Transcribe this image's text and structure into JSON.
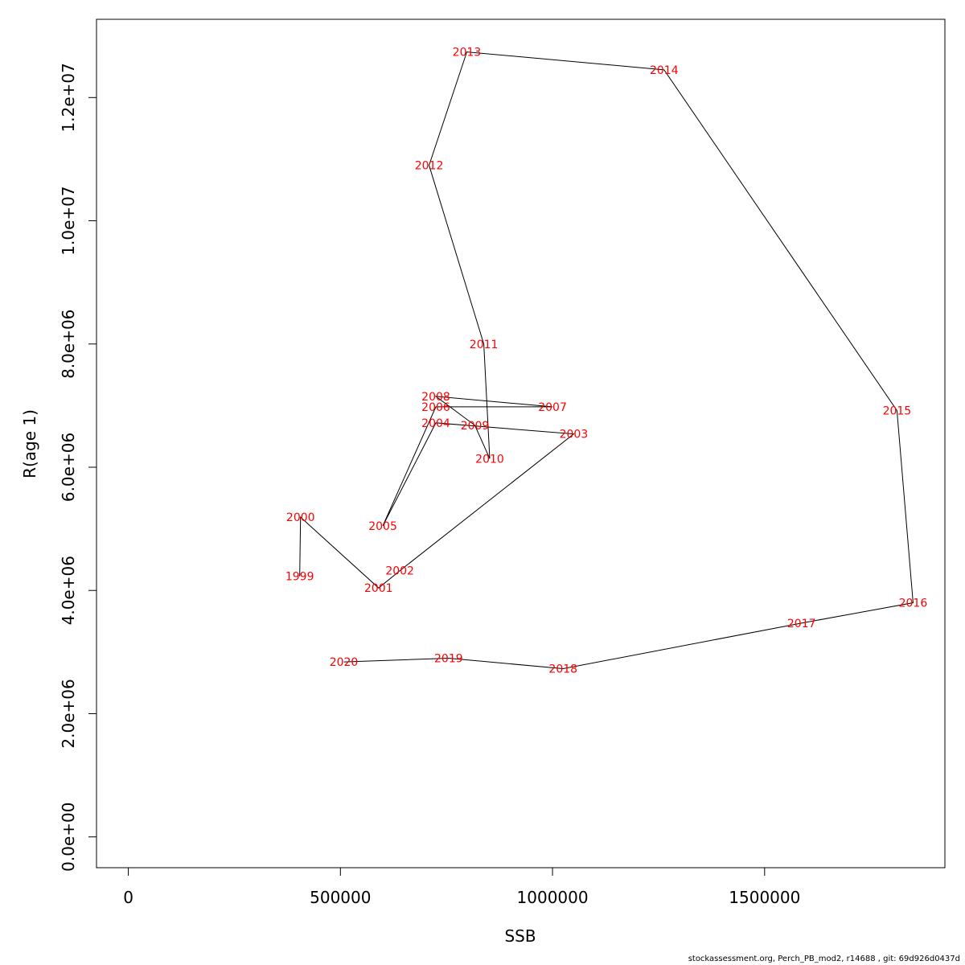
{
  "chart_data": {
    "type": "line",
    "xlabel": "SSB",
    "ylabel": "R(age 1)",
    "xlim": [
      -75000,
      1925000
    ],
    "ylim": [
      -500000,
      13270000
    ],
    "x_ticks": [
      0,
      500000,
      1000000,
      1500000
    ],
    "x_tick_labels": [
      "0",
      "500000",
      "1000000",
      "1500000"
    ],
    "y_ticks": [
      0,
      2000000,
      4000000,
      6000000,
      8000000,
      10000000,
      12000000
    ],
    "y_tick_labels": [
      "0.0e+00",
      "2.0e+06",
      "4.0e+06",
      "6.0e+06",
      "8.0e+06",
      "1.0e+07",
      "1.2e+07"
    ],
    "grid": false,
    "line_color": "#000000",
    "label_color": "#ff0000",
    "points": [
      {
        "year": "1999",
        "x": 404000,
        "y": 4230000
      },
      {
        "year": "2000",
        "x": 406000,
        "y": 5190000
      },
      {
        "year": "2001",
        "x": 590000,
        "y": 4040000
      },
      {
        "year": "2002",
        "x": 640000,
        "y": 4320000
      },
      {
        "year": "2003",
        "x": 1050000,
        "y": 6540000
      },
      {
        "year": "2004",
        "x": 725000,
        "y": 6720000
      },
      {
        "year": "2005",
        "x": 600000,
        "y": 5050000
      },
      {
        "year": "2006",
        "x": 725000,
        "y": 6980000
      },
      {
        "year": "2007",
        "x": 1000000,
        "y": 6980000
      },
      {
        "year": "2008",
        "x": 725000,
        "y": 7150000
      },
      {
        "year": "2009",
        "x": 817000,
        "y": 6680000
      },
      {
        "year": "2010",
        "x": 852000,
        "y": 6140000
      },
      {
        "year": "2011",
        "x": 838000,
        "y": 8000000
      },
      {
        "year": "2012",
        "x": 709000,
        "y": 10900000
      },
      {
        "year": "2013",
        "x": 798000,
        "y": 12740000
      },
      {
        "year": "2014",
        "x": 1263000,
        "y": 12450000
      },
      {
        "year": "2015",
        "x": 1812000,
        "y": 6920000
      },
      {
        "year": "2016",
        "x": 1850000,
        "y": 3800000
      },
      {
        "year": "2017",
        "x": 1587000,
        "y": 3470000
      },
      {
        "year": "2018",
        "x": 1025000,
        "y": 2730000
      },
      {
        "year": "2019",
        "x": 755000,
        "y": 2900000
      },
      {
        "year": "2020",
        "x": 508000,
        "y": 2840000
      }
    ]
  },
  "footer": "stockassessment.org, Perch_PB_mod2, r14688 , git: 69d926d0437d"
}
